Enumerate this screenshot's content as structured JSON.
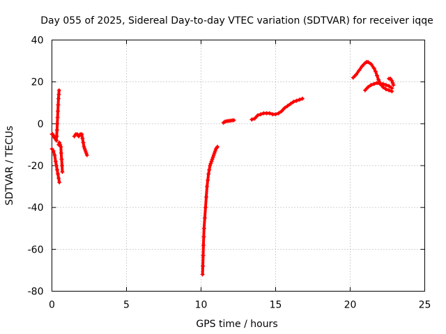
{
  "chart_data": {
    "type": "scatter",
    "title": "Day 055 of 2025, Sidereal Day-to-day VTEC variation (SDTVAR) for receiver iqqe",
    "xlabel": "GPS time / hours",
    "ylabel": "SDTVAR / TECUs",
    "xlim": [
      0,
      25
    ],
    "ylim": [
      -80,
      40
    ],
    "xticks": [
      0,
      5,
      10,
      15,
      20,
      25
    ],
    "yticks": [
      -80,
      -60,
      -40,
      -20,
      0,
      20,
      40
    ],
    "xtick_labels": [
      "0",
      "5",
      "10",
      "15",
      "20",
      "25"
    ],
    "ytick_labels": [
      "-80",
      "-60",
      "-40",
      "-20",
      "0",
      "20",
      "40"
    ],
    "grid": true,
    "marker": "+",
    "series": [
      {
        "name": "SDTVAR",
        "color": "#ff0000",
        "segments": [
          {
            "x": [
              0.0,
              0.1,
              0.18,
              0.25,
              0.3,
              0.35,
              0.4,
              0.45,
              0.5
            ],
            "y": [
              -12,
              -13,
              -15,
              -18,
              -20,
              -22,
              -24,
              -26,
              -28
            ]
          },
          {
            "x": [
              0.0,
              0.05,
              0.1,
              0.15,
              0.2,
              0.25,
              0.3
            ],
            "y": [
              -5,
              -5,
              -6,
              -6,
              -7,
              -7,
              -8
            ]
          },
          {
            "x": [
              0.3,
              0.32,
              0.34,
              0.36,
              0.38,
              0.4,
              0.42,
              0.44,
              0.46,
              0.48
            ],
            "y": [
              -8,
              -6,
              -3,
              0,
              3,
              6,
              9,
              12,
              14,
              16
            ]
          },
          {
            "x": [
              0.45,
              0.5,
              0.55,
              0.6,
              0.62,
              0.65,
              0.68,
              0.7
            ],
            "y": [
              -10,
              -9,
              -10,
              -11,
              -14,
              -17,
              -20,
              -23
            ]
          },
          {
            "x": [
              1.5,
              1.6,
              1.7,
              1.8,
              1.9,
              2.0,
              2.05,
              2.1,
              2.15,
              2.2,
              2.25,
              2.3,
              2.35
            ],
            "y": [
              -6,
              -5,
              -5,
              -6,
              -5,
              -5,
              -7,
              -9,
              -11,
              -12,
              -13,
              -14,
              -15
            ]
          },
          {
            "x": [
              10.1,
              10.12,
              10.14,
              10.16,
              10.18,
              10.2,
              10.25,
              10.3,
              10.35,
              10.4,
              10.45,
              10.5,
              10.55,
              10.6,
              10.65,
              10.7,
              10.75,
              10.8,
              10.85,
              10.9,
              10.95,
              11.0,
              11.05,
              11.1
            ],
            "y": [
              -72,
              -68,
              -63,
              -58,
              -54,
              -50,
              -45,
              -40,
              -35,
              -30,
              -27,
              -24,
              -22,
              -20,
              -19,
              -18,
              -17,
              -16,
              -15,
              -14,
              -13,
              -12,
              -11.5,
              -11
            ]
          },
          {
            "x": [
              11.5,
              11.6,
              11.7,
              11.8,
              11.9,
              12.0,
              12.1,
              12.2
            ],
            "y": [
              0.5,
              1,
              1.2,
              1.3,
              1.4,
              1.5,
              1.6,
              1.7
            ]
          },
          {
            "x": [
              13.4,
              13.6,
              13.8,
              14.0,
              14.2,
              14.4,
              14.6,
              14.8,
              15.0,
              15.2,
              15.4,
              15.6,
              15.8,
              16.0,
              16.2,
              16.4,
              16.6,
              16.8
            ],
            "y": [
              2,
              2.5,
              4,
              4.5,
              5,
              5,
              5,
              4.5,
              4.5,
              5,
              6,
              7.5,
              8.5,
              9.5,
              10.5,
              11,
              11.5,
              12
            ]
          },
          {
            "x": [
              20.2,
              20.4,
              20.6,
              20.8,
              21.0,
              21.1,
              21.2,
              21.4,
              21.6,
              21.7,
              21.8,
              21.9,
              22.0,
              22.1,
              22.2,
              22.4,
              22.6,
              22.8
            ],
            "y": [
              22,
              23.5,
              25.5,
              27.5,
              29,
              29.5,
              29.5,
              28.5,
              26.5,
              25,
              23,
              21,
              19.5,
              18.5,
              17.5,
              16.5,
              16,
              15.5
            ]
          },
          {
            "x": [
              21.0,
              21.2,
              21.4,
              21.6,
              21.8,
              22.0,
              22.2,
              22.4,
              22.6,
              22.8
            ],
            "y": [
              16,
              17.5,
              18.5,
              19,
              19.5,
              19,
              19,
              18.5,
              18,
              17
            ]
          },
          {
            "x": [
              22.6,
              22.7,
              22.8,
              22.85,
              22.9
            ],
            "y": [
              21.5,
              21.5,
              20.5,
              19.5,
              18.5
            ]
          }
        ]
      }
    ]
  }
}
